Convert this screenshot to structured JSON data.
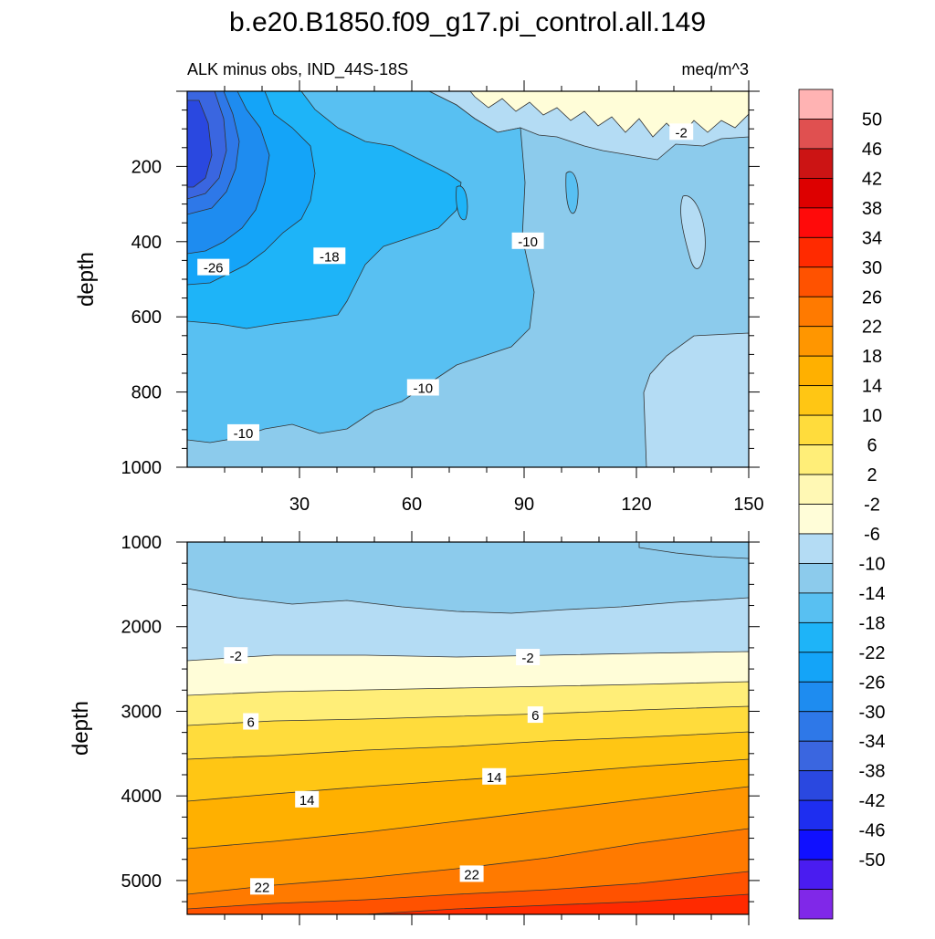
{
  "figure": {
    "title": "b.e20.B1850.f09_g17.pi_control.all.149",
    "subtitle_left": "ALK minus obs, IND_44S-18S",
    "subtitle_right": "meq/m^3"
  },
  "chart_data": [
    {
      "type": "heatmap",
      "panel": "upper",
      "xlabel": "",
      "ylabel": "depth",
      "xlim": [
        0,
        150
      ],
      "ylim": [
        1000,
        0
      ],
      "x_ticks": [
        30,
        60,
        90,
        120,
        150
      ],
      "y_ticks": [
        200,
        400,
        600,
        800,
        1000
      ],
      "contour_labels": [
        {
          "text": "-2",
          "x": 132,
          "depth": 110
        },
        {
          "text": "-10",
          "x": 91,
          "depth": 400
        },
        {
          "text": "-18",
          "x": 38,
          "depth": 440
        },
        {
          "text": "-26",
          "x": 7,
          "depth": 470
        },
        {
          "text": "-10",
          "x": 63,
          "depth": 790
        },
        {
          "text": "-10",
          "x": 15,
          "depth": 910
        }
      ],
      "approx_field": "most negative (~-42) near x=0, depth 100-300; -10 to -6 over the eastern half; -2 near the surface east of x=75"
    },
    {
      "type": "heatmap",
      "panel": "lower",
      "xlabel": "",
      "ylabel": "depth",
      "xlim": [
        0,
        150
      ],
      "ylim": [
        5400,
        1000
      ],
      "y_ticks": [
        1000,
        2000,
        3000,
        4000,
        5000
      ],
      "contour_labels": [
        {
          "text": "-2",
          "x": 13,
          "depth": 2350
        },
        {
          "text": "-2",
          "x": 91,
          "depth": 2370
        },
        {
          "text": "6",
          "x": 17,
          "depth": 3130
        },
        {
          "text": "6",
          "x": 93,
          "depth": 3050
        },
        {
          "text": "14",
          "x": 32,
          "depth": 4050
        },
        {
          "text": "14",
          "x": 82,
          "depth": 3780
        },
        {
          "text": "22",
          "x": 20,
          "depth": 5080
        },
        {
          "text": "22",
          "x": 76,
          "depth": 4930
        }
      ],
      "approx_field": "-10 to -6 near 1000-2300 m, increasing with depth to ~30 near the bottom; isolines shallower toward the east"
    }
  ],
  "colorbar": {
    "labels": [
      "50",
      "46",
      "42",
      "38",
      "34",
      "30",
      "26",
      "22",
      "18",
      "14",
      "10",
      "6",
      "2",
      "-2",
      "-6",
      "-10",
      "-14",
      "-18",
      "-22",
      "-26",
      "-30",
      "-34",
      "-38",
      "-42",
      "-46",
      "-50"
    ],
    "colors": [
      "#ffb3b3",
      "#e05050",
      "#cc1414",
      "#dd0000",
      "#ff0a0a",
      "#ff2a00",
      "#ff5200",
      "#ff7a00",
      "#ff9600",
      "#ffb000",
      "#ffc614",
      "#ffdc3c",
      "#ffee78",
      "#fff8b4",
      "#fffdd8",
      "#b4dcf4",
      "#8ccbec",
      "#58c0f2",
      "#1eb4f8",
      "#14a4f8",
      "#1e8cf0",
      "#2e78e8",
      "#3a66e0",
      "#2a48e0",
      "#1e2ef0",
      "#1010ff",
      "#4a1cf0",
      "#8028e8"
    ]
  }
}
